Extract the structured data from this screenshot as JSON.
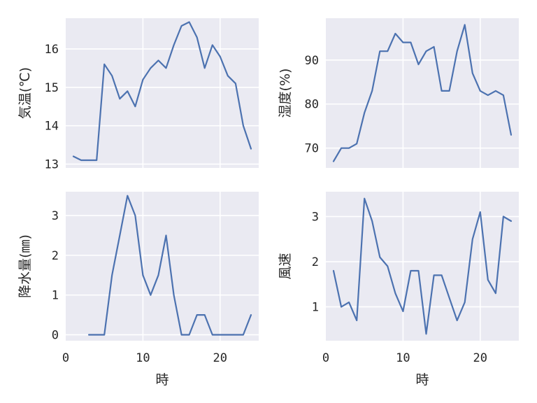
{
  "figure": {
    "style": "seaborn darkgrid",
    "background": "#ffffff",
    "plot_background": "#eaeaf2",
    "grid_color": "#ffffff",
    "line_color": "#4c72b0"
  },
  "chart_data": [
    {
      "id": "temperature",
      "type": "line",
      "xlabel": "",
      "ylabel": "気温(℃)",
      "x_ticks": [
        0,
        10,
        20
      ],
      "x_tick_labels_visible": false,
      "y_ticks": [
        13,
        14,
        15,
        16
      ],
      "xlim": [
        0,
        25
      ],
      "ylim": [
        12.9,
        16.8
      ],
      "grid": true,
      "series": [
        {
          "color": "#4c72b0",
          "x": [
            1,
            2,
            3,
            4,
            5,
            6,
            7,
            8,
            9,
            10,
            11,
            12,
            13,
            14,
            15,
            16,
            17,
            18,
            19,
            20,
            21,
            22,
            23,
            24
          ],
          "y": [
            13.2,
            13.1,
            13.1,
            13.1,
            15.6,
            15.3,
            14.7,
            14.9,
            14.5,
            15.2,
            15.5,
            15.7,
            15.5,
            16.1,
            16.6,
            16.7,
            16.3,
            15.5,
            16.1,
            15.8,
            15.3,
            15.1,
            14.0,
            13.4
          ]
        }
      ]
    },
    {
      "id": "humidity",
      "type": "line",
      "xlabel": "",
      "ylabel": "湿度(%)",
      "x_ticks": [
        0,
        10,
        20
      ],
      "x_tick_labels_visible": false,
      "y_ticks": [
        70,
        80,
        90
      ],
      "xlim": [
        0,
        25
      ],
      "ylim": [
        65.5,
        99.5
      ],
      "grid": true,
      "series": [
        {
          "color": "#4c72b0",
          "x": [
            1,
            2,
            3,
            4,
            5,
            6,
            7,
            8,
            9,
            10,
            11,
            12,
            13,
            14,
            15,
            16,
            17,
            18,
            19,
            20,
            21,
            22,
            23,
            24
          ],
          "y": [
            67,
            70,
            70,
            71,
            78,
            83,
            92,
            92,
            96,
            94,
            94,
            89,
            92,
            93,
            83,
            83,
            92,
            98,
            87,
            83,
            82,
            83,
            82,
            73
          ]
        }
      ]
    },
    {
      "id": "precipitation",
      "type": "line",
      "xlabel": "時",
      "ylabel": "降水量(㎜)",
      "x_ticks": [
        0,
        10,
        20
      ],
      "x_tick_labels_visible": true,
      "y_ticks": [
        0,
        1,
        2,
        3
      ],
      "xlim": [
        0,
        25
      ],
      "ylim": [
        -0.15,
        3.6
      ],
      "grid": true,
      "series": [
        {
          "color": "#4c72b0",
          "x": [
            3,
            4,
            5,
            6,
            7,
            8,
            9,
            10,
            11,
            12,
            13,
            14,
            15,
            16,
            17,
            18,
            19,
            20,
            21,
            22,
            23,
            24
          ],
          "y": [
            0,
            0,
            0,
            1.5,
            2.5,
            3.5,
            3.0,
            1.5,
            1.0,
            1.5,
            2.5,
            1.0,
            0,
            0,
            0.5,
            0.5,
            0,
            0,
            0,
            0,
            0,
            0.5
          ]
        }
      ]
    },
    {
      "id": "wind_speed",
      "type": "line",
      "xlabel": "時",
      "ylabel": "風速",
      "x_ticks": [
        0,
        10,
        20
      ],
      "x_tick_labels_visible": true,
      "y_ticks": [
        1,
        2,
        3
      ],
      "xlim": [
        0,
        25
      ],
      "ylim": [
        0.25,
        3.55
      ],
      "grid": true,
      "series": [
        {
          "color": "#4c72b0",
          "x": [
            1,
            2,
            3,
            4,
            5,
            6,
            7,
            8,
            9,
            10,
            11,
            12,
            13,
            14,
            15,
            16,
            17,
            18,
            19,
            20,
            21,
            22,
            23,
            24
          ],
          "y": [
            1.8,
            1.0,
            1.1,
            0.7,
            3.4,
            2.9,
            2.1,
            1.9,
            1.3,
            0.9,
            1.8,
            1.8,
            0.4,
            1.7,
            1.7,
            1.2,
            0.7,
            1.1,
            2.5,
            3.1,
            1.6,
            1.3,
            3.0,
            2.9
          ]
        }
      ]
    }
  ]
}
